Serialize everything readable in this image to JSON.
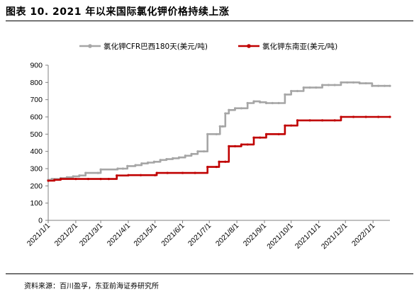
{
  "header": {
    "title": "图表 10. 2021 年以来国际氯化钾价格持续上涨"
  },
  "footer": {
    "source": "资料来源：百川盈孚，东亚前海证券研究所"
  },
  "colors": {
    "series_cfr": "#a6a6a6",
    "series_sea": "#c00000",
    "axis": "#808080"
  },
  "chart_data": {
    "type": "line",
    "title": "",
    "xlabel": "",
    "ylabel": "",
    "ylim": [
      0,
      900
    ],
    "yticks": [
      0,
      100,
      200,
      300,
      400,
      500,
      600,
      700,
      800,
      900
    ],
    "xlim": [
      "2021-01-01",
      "2022-01-20"
    ],
    "xticks": [
      {
        "date": "2021-01-01",
        "label": "2021/1/1"
      },
      {
        "date": "2021-02-01",
        "label": "2021/2/1"
      },
      {
        "date": "2021-03-01",
        "label": "2021/3/1"
      },
      {
        "date": "2021-04-01",
        "label": "2021/4/1"
      },
      {
        "date": "2021-05-01",
        "label": "2021/5/1"
      },
      {
        "date": "2021-06-01",
        "label": "2021/6/1"
      },
      {
        "date": "2021-07-01",
        "label": "2021/7/1"
      },
      {
        "date": "2021-08-01",
        "label": "2021/8/1"
      },
      {
        "date": "2021-09-01",
        "label": "2021/9/1"
      },
      {
        "date": "2021-10-01",
        "label": "2021/10/1"
      },
      {
        "date": "2021-11-01",
        "label": "2021/11/1"
      },
      {
        "date": "2021-12-01",
        "label": "2021/12/1"
      },
      {
        "date": "2022-01-01",
        "label": "2022/1/1"
      }
    ],
    "grid": false,
    "legend_position": "top",
    "series": [
      {
        "name": "氯化钾CFR巴西180天(美元/吨)",
        "points": [
          [
            "2021-01-01",
            235
          ],
          [
            "2021-01-05",
            240
          ],
          [
            "2021-01-15",
            245
          ],
          [
            "2021-01-22",
            250
          ],
          [
            "2021-01-29",
            255
          ],
          [
            "2021-02-05",
            260
          ],
          [
            "2021-02-12",
            275
          ],
          [
            "2021-02-26",
            275
          ],
          [
            "2021-03-01",
            295
          ],
          [
            "2021-03-20",
            300
          ],
          [
            "2021-03-26",
            300
          ],
          [
            "2021-03-31",
            315
          ],
          [
            "2021-04-09",
            320
          ],
          [
            "2021-04-16",
            330
          ],
          [
            "2021-04-23",
            335
          ],
          [
            "2021-04-30",
            340
          ],
          [
            "2021-05-07",
            350
          ],
          [
            "2021-05-14",
            355
          ],
          [
            "2021-05-21",
            360
          ],
          [
            "2021-05-28",
            365
          ],
          [
            "2021-06-04",
            375
          ],
          [
            "2021-06-11",
            385
          ],
          [
            "2021-06-18",
            400
          ],
          [
            "2021-06-25",
            400
          ],
          [
            "2021-06-29",
            500
          ],
          [
            "2021-07-09",
            500
          ],
          [
            "2021-07-13",
            545
          ],
          [
            "2021-07-16",
            545
          ],
          [
            "2021-07-19",
            620
          ],
          [
            "2021-07-23",
            640
          ],
          [
            "2021-07-30",
            650
          ],
          [
            "2021-08-06",
            650
          ],
          [
            "2021-08-13",
            680
          ],
          [
            "2021-08-20",
            690
          ],
          [
            "2021-08-27",
            685
          ],
          [
            "2021-09-03",
            680
          ],
          [
            "2021-09-10",
            680
          ],
          [
            "2021-09-17",
            680
          ],
          [
            "2021-09-24",
            730
          ],
          [
            "2021-10-01",
            750
          ],
          [
            "2021-10-08",
            750
          ],
          [
            "2021-10-15",
            770
          ],
          [
            "2021-10-22",
            770
          ],
          [
            "2021-10-29",
            770
          ],
          [
            "2021-11-05",
            785
          ],
          [
            "2021-11-12",
            785
          ],
          [
            "2021-11-19",
            785
          ],
          [
            "2021-11-26",
            800
          ],
          [
            "2021-12-03",
            800
          ],
          [
            "2021-12-10",
            800
          ],
          [
            "2021-12-17",
            795
          ],
          [
            "2021-12-24",
            795
          ],
          [
            "2021-12-31",
            780
          ],
          [
            "2022-01-07",
            780
          ],
          [
            "2022-01-14",
            780
          ],
          [
            "2022-01-20",
            780
          ]
        ]
      },
      {
        "name": "氯化钾东南亚(美元/吨)",
        "points": [
          [
            "2021-01-01",
            230
          ],
          [
            "2021-01-08",
            235
          ],
          [
            "2021-01-15",
            240
          ],
          [
            "2021-02-01",
            240
          ],
          [
            "2021-02-15",
            240
          ],
          [
            "2021-03-01",
            240
          ],
          [
            "2021-03-10",
            240
          ],
          [
            "2021-03-19",
            260
          ],
          [
            "2021-04-01",
            262
          ],
          [
            "2021-04-15",
            262
          ],
          [
            "2021-05-01",
            262
          ],
          [
            "2021-05-03",
            275
          ],
          [
            "2021-05-15",
            275
          ],
          [
            "2021-06-01",
            275
          ],
          [
            "2021-06-15",
            275
          ],
          [
            "2021-06-29",
            310
          ],
          [
            "2021-07-09",
            310
          ],
          [
            "2021-07-12",
            340
          ],
          [
            "2021-07-19",
            340
          ],
          [
            "2021-07-23",
            430
          ],
          [
            "2021-07-30",
            430
          ],
          [
            "2021-08-06",
            440
          ],
          [
            "2021-08-13",
            440
          ],
          [
            "2021-08-20",
            480
          ],
          [
            "2021-08-27",
            480
          ],
          [
            "2021-09-03",
            500
          ],
          [
            "2021-09-17",
            500
          ],
          [
            "2021-09-24",
            550
          ],
          [
            "2021-10-01",
            550
          ],
          [
            "2021-10-08",
            580
          ],
          [
            "2021-10-22",
            580
          ],
          [
            "2021-11-05",
            580
          ],
          [
            "2021-11-19",
            580
          ],
          [
            "2021-11-26",
            600
          ],
          [
            "2021-12-10",
            600
          ],
          [
            "2021-12-24",
            600
          ],
          [
            "2022-01-07",
            600
          ],
          [
            "2022-01-20",
            600
          ]
        ]
      }
    ]
  }
}
